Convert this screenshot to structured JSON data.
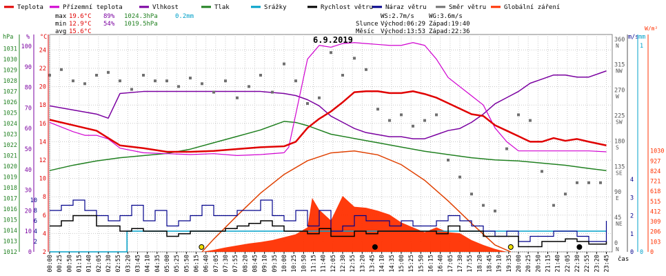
{
  "title": "6.9.2019",
  "legend": [
    {
      "label": "Teplota",
      "color": "#e00000"
    },
    {
      "label": "Přízemní teplota",
      "color": "#d000d0"
    },
    {
      "label": "Vlhkost",
      "color": "#7a00a0"
    },
    {
      "label": "Tlak",
      "color": "#208020"
    },
    {
      "label": "Srážky",
      "color": "#00a0c8"
    },
    {
      "label": "Rychlost větru",
      "color": "#000000"
    },
    {
      "label": "Náraz větru",
      "color": "#00008b"
    },
    {
      "label": "Směr větru",
      "color": "#707070"
    },
    {
      "label": "Globální záření",
      "color": "#ff3000"
    }
  ],
  "stats": {
    "max": {
      "label": "max",
      "temp": "19.6°C",
      "hum": "89%",
      "press": "1024.3hPa",
      "rain": "0.2mm"
    },
    "min": {
      "label": "min",
      "temp": "12.9°C",
      "hum": "54%",
      "press": "1019.5hPa"
    },
    "avg": {
      "label": "avg",
      "temp": "15.6°C"
    }
  },
  "info": {
    "ws": "WS:2.7m/s",
    "wg": "WG:3.6m/s",
    "sun_label": "Slunce",
    "sun_rise": "Východ:06:29",
    "sun_set": "Západ:19:40",
    "moon_label": "Měsíc",
    "moon_rise": "Východ:13:53",
    "moon_set": "Západ:22:36"
  },
  "axis_units": {
    "hpa": "hPa",
    "pct": "%",
    "degc": "°C",
    "ms": "m/s",
    "mm": "mm",
    "wm2": "W/m²",
    "time": "čas"
  },
  "axes": {
    "hpa": [
      "1012",
      "1013",
      "1014",
      "1015",
      "1016",
      "1017",
      "1018",
      "1019",
      "1020",
      "1021",
      "1022",
      "1023",
      "1024",
      "1025",
      "1026",
      "1027",
      "1028",
      "1029",
      "1030",
      "1031"
    ],
    "pct": [
      "0",
      "10",
      "20",
      "30",
      "40",
      "50",
      "60",
      "70",
      "80",
      "90",
      "100"
    ],
    "degc": [
      "2",
      "4",
      "6",
      "8",
      "10",
      "12",
      "14",
      "16",
      "18",
      "20",
      "22",
      "24"
    ],
    "ms_left": [
      "2",
      "4",
      "6",
      "8",
      "10"
    ],
    "dir": [
      [
        "0",
        "N"
      ],
      [
        "45",
        "NE"
      ],
      [
        "90",
        "E"
      ],
      [
        "135",
        "SE"
      ],
      [
        "180",
        "S"
      ],
      [
        "225",
        "SW"
      ],
      [
        "270",
        "W"
      ],
      [
        "315",
        "NW"
      ],
      [
        "360",
        "N"
      ]
    ],
    "ms_right": [
      "0",
      "1",
      "2",
      "3",
      "4"
    ],
    "mm": [
      "0",
      "1"
    ],
    "wm2": [
      "0",
      "103",
      "206",
      "309",
      "412",
      "515",
      "618",
      "721",
      "824",
      "927",
      "1030"
    ]
  },
  "time_labels": [
    "00:00",
    "00:25",
    "00:50",
    "01:15",
    "01:40",
    "02:05",
    "02:30",
    "02:55",
    "03:20",
    "03:45",
    "04:10",
    "04:35",
    "05:00",
    "05:25",
    "05:50",
    "06:15",
    "06:40",
    "07:05",
    "07:30",
    "07:55",
    "08:20",
    "08:45",
    "09:10",
    "09:35",
    "10:00",
    "10:25",
    "10:50",
    "11:15",
    "11:40",
    "12:05",
    "12:30",
    "12:55",
    "13:20",
    "13:45",
    "14:10",
    "14:35",
    "15:00",
    "15:25",
    "15:50",
    "16:15",
    "16:40",
    "17:05",
    "17:30",
    "17:55",
    "18:20",
    "18:45",
    "19:10",
    "19:35",
    "20:00",
    "20:25",
    "20:50",
    "21:15",
    "21:40",
    "22:05",
    "22:30",
    "22:55",
    "23:20",
    "23:45"
  ],
  "chart_data": {
    "type": "line",
    "x_unit": "hours",
    "series": [
      {
        "name": "Teplota",
        "unit": "°C",
        "color": "#e00000",
        "x": [
          0,
          1,
          2,
          3,
          4,
          5,
          6,
          7,
          8,
          9,
          10,
          10.5,
          11,
          11.5,
          12,
          12.5,
          13,
          13.5,
          14,
          14.5,
          15,
          15.5,
          16,
          16.5,
          17,
          17.5,
          18,
          18.5,
          19,
          19.5,
          20,
          20.5,
          21,
          21.5,
          22,
          22.5,
          23,
          23.75
        ],
        "y": [
          16.4,
          15.8,
          15.2,
          13.6,
          13.3,
          12.9,
          12.9,
          13.0,
          13.2,
          13.4,
          13.5,
          14.0,
          15.5,
          16.5,
          17.3,
          18.3,
          19.4,
          19.5,
          19.5,
          19.3,
          19.3,
          19.5,
          19.2,
          18.8,
          18.2,
          17.6,
          17.0,
          16.8,
          15.8,
          15.2,
          14.6,
          14.0,
          14.0,
          14.4,
          14.1,
          14.3,
          14.0,
          13.6
        ]
      },
      {
        "name": "Přízemní teplota",
        "unit": "°C",
        "color": "#d000d0",
        "x": [
          0,
          1,
          1.5,
          2,
          2.5,
          3,
          4,
          5,
          6,
          7,
          8,
          9,
          10,
          10.2,
          10.5,
          11,
          11.5,
          12,
          12.5,
          13,
          13.5,
          14,
          14.5,
          15,
          15.5,
          16,
          16.5,
          17,
          17.5,
          18,
          18.5,
          19,
          19.5,
          20,
          21,
          22,
          23,
          23.75
        ],
        "y": [
          16.1,
          15.1,
          14.7,
          14.7,
          14.3,
          13.3,
          12.8,
          12.7,
          12.6,
          12.7,
          12.5,
          12.6,
          12.8,
          13.4,
          17,
          23,
          24.5,
          24.3,
          24.7,
          24.8,
          24.7,
          24.6,
          24.5,
          24.5,
          24.8,
          24.5,
          23,
          21,
          20,
          19,
          18,
          15.5,
          14,
          13,
          13,
          13,
          13,
          12.9
        ]
      },
      {
        "name": "Vlhkost",
        "unit": "%",
        "color": "#7a00a0",
        "x": [
          0,
          0.5,
          1,
          1.5,
          2,
          2.5,
          3,
          4,
          5,
          6,
          7,
          8,
          9,
          10,
          10.5,
          11,
          11.5,
          12,
          12.5,
          13,
          13.5,
          14,
          14.5,
          15,
          15.5,
          16,
          16.5,
          17,
          17.5,
          18,
          18.5,
          19,
          19.5,
          20,
          20.5,
          21,
          21.5,
          22,
          22.5,
          23,
          23.5,
          23.75
        ],
        "y": [
          71,
          70,
          69,
          68,
          67,
          65,
          77,
          78,
          78,
          78,
          78,
          78,
          78,
          77,
          76,
          74,
          71,
          66,
          63,
          60,
          58,
          57,
          56,
          56,
          55,
          55,
          57,
          59,
          60,
          63,
          67,
          72,
          75,
          78,
          82,
          84,
          86,
          86,
          85,
          85,
          87,
          88
        ]
      },
      {
        "name": "Tlak",
        "unit": "hPa",
        "color": "#208020",
        "x": [
          0,
          1,
          2,
          3,
          4,
          5,
          6,
          7,
          8,
          9,
          10,
          10.5,
          11,
          11.5,
          12,
          13,
          14,
          15,
          16,
          17,
          18,
          19,
          20,
          21,
          22,
          23,
          23.75
        ],
        "y": [
          1019.6,
          1020.1,
          1020.5,
          1020.8,
          1021.0,
          1021.2,
          1021.6,
          1022.2,
          1022.8,
          1023.4,
          1024.2,
          1024.1,
          1023.8,
          1023.4,
          1023.0,
          1022.6,
          1022.2,
          1021.8,
          1021.4,
          1021.1,
          1020.8,
          1020.6,
          1020.5,
          1020.3,
          1020.1,
          1019.8,
          1019.6
        ]
      },
      {
        "name": "Srážky",
        "unit": "mm",
        "color": "#00a0c8",
        "x": [
          0,
          3,
          3.2,
          3.3,
          23.75
        ],
        "y": [
          0,
          0,
          0,
          0.2,
          0.2
        ]
      },
      {
        "name": "Rychlost větru",
        "unit": "m/s",
        "color": "#000000",
        "x": [
          0,
          0.5,
          1,
          1.5,
          2,
          2.5,
          3,
          3.5,
          4,
          4.5,
          5,
          5.5,
          6,
          6.5,
          7,
          7.5,
          8,
          8.5,
          9,
          9.5,
          10,
          10.5,
          11,
          11.5,
          12,
          12.5,
          13,
          13.5,
          14,
          14.5,
          15,
          15.5,
          16,
          16.5,
          17,
          17.5,
          18,
          18.5,
          19,
          19.5,
          20,
          20.5,
          21,
          21.5,
          22,
          22.5,
          23,
          23.75
        ],
        "y": [
          5,
          6,
          7,
          7,
          5,
          5,
          4,
          4.5,
          4,
          4,
          3,
          3.5,
          4,
          4,
          4,
          4.5,
          5,
          5.5,
          6,
          5,
          4,
          4,
          3.5,
          4.5,
          3,
          3,
          4,
          3.5,
          4,
          4,
          4,
          4,
          4,
          3.5,
          5,
          4,
          4,
          3,
          3,
          3,
          1,
          1,
          2,
          2,
          2.5,
          2,
          1.5,
          2
        ]
      },
      {
        "name": "Náraz větru",
        "unit": "m/s",
        "color": "#00008b",
        "x": [
          0,
          0.5,
          1,
          1.5,
          2,
          2.5,
          3,
          3.5,
          4,
          4.5,
          5,
          5.5,
          6,
          6.5,
          7,
          7.5,
          8,
          8.5,
          9,
          9.5,
          10,
          10.5,
          11,
          11.5,
          12,
          12.5,
          13,
          13.5,
          14,
          14.5,
          15,
          15.5,
          16,
          16.5,
          17,
          17.5,
          18,
          18.5,
          19,
          19.5,
          20,
          20.5,
          21,
          21.5,
          22,
          22.5,
          23,
          23.75
        ],
        "y": [
          8,
          9,
          10,
          8,
          7,
          6,
          7,
          9,
          6,
          8,
          5,
          6,
          7,
          9,
          7,
          7,
          8,
          8,
          10,
          7,
          6,
          8,
          5,
          8,
          4,
          5,
          7,
          6,
          6,
          5,
          6,
          5,
          5,
          6,
          7,
          6,
          5,
          4,
          3,
          4,
          2,
          3,
          3,
          4,
          4,
          3,
          2,
          6
        ]
      },
      {
        "name": "Směr větru",
        "unit": "°",
        "color": "#707070",
        "x": [
          0,
          0.5,
          1,
          1.5,
          2,
          2.5,
          3,
          3.5,
          4,
          4.5,
          5,
          5.5,
          6,
          6.5,
          7,
          7.5,
          8,
          8.5,
          9,
          9.5,
          10,
          10.5,
          11,
          11.5,
          12,
          12.5,
          13,
          13.5,
          14,
          14.5,
          15,
          15.5,
          16,
          16.5,
          17,
          17.5,
          18,
          18.5,
          19,
          19.5,
          20,
          20.5,
          21,
          21.5,
          22,
          22.5,
          23,
          23.5
        ],
        "y": [
          300,
          310,
          290,
          285,
          300,
          305,
          290,
          275,
          300,
          290,
          290,
          280,
          295,
          285,
          270,
          290,
          260,
          280,
          300,
          270,
          320,
          290,
          250,
          260,
          340,
          300,
          330,
          310,
          240,
          220,
          230,
          210,
          220,
          230,
          150,
          120,
          90,
          70,
          60,
          170,
          230,
          220,
          130,
          70,
          90,
          110,
          110,
          110
        ]
      },
      {
        "name": "Globální záření",
        "unit": "W/m²",
        "color": "#ff3000",
        "x": [
          6.5,
          7,
          7.5,
          8,
          8.5,
          9,
          9.5,
          10,
          10.5,
          11,
          11.2,
          11.5,
          12,
          12.5,
          13,
          13.5,
          14,
          14.5,
          15,
          15.5,
          16,
          16.5,
          17,
          17.5,
          18,
          18.5,
          19,
          19.5
        ],
        "y": [
          0,
          20,
          45,
          65,
          85,
          100,
          120,
          150,
          180,
          250,
          550,
          430,
          320,
          570,
          460,
          450,
          420,
          380,
          300,
          250,
          200,
          250,
          200,
          190,
          120,
          70,
          30,
          0
        ]
      }
    ],
    "theoretical_radiation": {
      "x": [
        6.5,
        7,
        8,
        9,
        10,
        11,
        12,
        13,
        14,
        15,
        16,
        17,
        18,
        19,
        19.67
      ],
      "y": [
        0,
        130,
        370,
        600,
        790,
        930,
        1010,
        1030,
        990,
        890,
        730,
        520,
        290,
        70,
        0
      ]
    }
  }
}
